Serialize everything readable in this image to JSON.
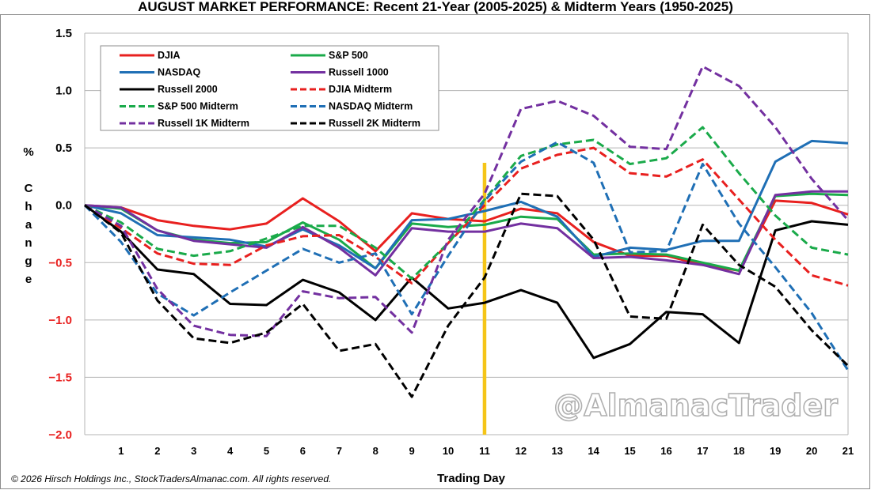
{
  "chart_data": {
    "type": "line",
    "title": "AUGUST MARKET PERFORMANCE: Recent 21-Year (2005-2025) & Midterm Years (1950-2025)",
    "xlabel": "Trading Day",
    "ylabel": "% Change",
    "ylabel_chars": [
      "%",
      "",
      "C",
      "h",
      "a",
      "n",
      "g",
      "e"
    ],
    "ylim": [
      -2.0,
      1.5
    ],
    "yticks": [
      1.5,
      1.0,
      0.5,
      0.0,
      -0.5,
      -1.0,
      -1.5,
      -2.0
    ],
    "ytick_labels": [
      "1.5",
      "1.0",
      "0.5",
      "0.0",
      "−0.5",
      "−1.0",
      "−1.5",
      "−2.0"
    ],
    "xlim": [
      0,
      21
    ],
    "xticks": [
      1,
      2,
      3,
      4,
      5,
      6,
      7,
      8,
      9,
      10,
      11,
      12,
      13,
      14,
      15,
      16,
      17,
      18,
      19,
      20,
      21
    ],
    "xtick_labels": [
      "1",
      "2",
      "3",
      "4",
      "5",
      "6",
      "7",
      "8",
      "9",
      "10",
      "11",
      "12",
      "13",
      "14",
      "15",
      "16",
      "17",
      "18",
      "19",
      "20",
      "21"
    ],
    "grid": "horizontal",
    "legend_position": "top-left",
    "x": [
      0,
      1,
      2,
      3,
      4,
      5,
      6,
      7,
      8,
      9,
      10,
      11,
      12,
      13,
      14,
      15,
      16,
      17,
      18,
      19,
      20,
      21
    ],
    "series": [
      {
        "name": "DJIA",
        "color": "#e8201f",
        "dash": "solid",
        "values": [
          0,
          -0.02,
          -0.13,
          -0.18,
          -0.21,
          -0.16,
          0.06,
          -0.14,
          -0.4,
          -0.07,
          -0.12,
          -0.14,
          -0.03,
          -0.07,
          -0.32,
          -0.44,
          -0.44,
          -0.52,
          -0.57,
          0.04,
          0.02,
          -0.08
        ]
      },
      {
        "name": "S&P 500",
        "color": "#1aaa4a",
        "dash": "solid",
        "values": [
          0,
          -0.03,
          -0.22,
          -0.3,
          -0.33,
          -0.32,
          -0.15,
          -0.3,
          -0.55,
          -0.16,
          -0.19,
          -0.17,
          -0.1,
          -0.12,
          -0.43,
          -0.42,
          -0.43,
          -0.5,
          -0.57,
          0.08,
          0.1,
          0.09
        ]
      },
      {
        "name": "NASDAQ",
        "color": "#1f6fb5",
        "dash": "solid",
        "values": [
          0,
          -0.07,
          -0.26,
          -0.28,
          -0.3,
          -0.36,
          -0.21,
          -0.35,
          -0.55,
          -0.13,
          -0.12,
          -0.05,
          0.03,
          -0.1,
          -0.45,
          -0.37,
          -0.39,
          -0.31,
          -0.31,
          0.38,
          0.56,
          0.54
        ]
      },
      {
        "name": "Russell 1000",
        "color": "#7330a0",
        "dash": "solid",
        "values": [
          0,
          -0.02,
          -0.22,
          -0.31,
          -0.34,
          -0.37,
          -0.19,
          -0.37,
          -0.61,
          -0.2,
          -0.23,
          -0.23,
          -0.16,
          -0.2,
          -0.46,
          -0.45,
          -0.48,
          -0.52,
          -0.6,
          0.09,
          0.12,
          0.12
        ]
      },
      {
        "name": "Russell 2000",
        "color": "#000000",
        "dash": "solid",
        "values": [
          0,
          -0.23,
          -0.56,
          -0.6,
          -0.86,
          -0.87,
          -0.65,
          -0.76,
          -1.0,
          -0.63,
          -0.9,
          -0.85,
          -0.74,
          -0.85,
          -1.33,
          -1.21,
          -0.93,
          -0.95,
          -1.2,
          -0.22,
          -0.14,
          -0.17
        ]
      },
      {
        "name": "DJIA Midterm",
        "color": "#e8201f",
        "dash": "dashed",
        "values": [
          0,
          -0.2,
          -0.42,
          -0.51,
          -0.52,
          -0.35,
          -0.27,
          -0.26,
          -0.45,
          -0.68,
          -0.33,
          0.0,
          0.32,
          0.44,
          0.5,
          0.28,
          0.25,
          0.4,
          0.05,
          -0.3,
          -0.61,
          -0.7
        ]
      },
      {
        "name": "S&P 500 Midterm",
        "color": "#1aaa4a",
        "dash": "dashed",
        "values": [
          0,
          -0.15,
          -0.38,
          -0.44,
          -0.4,
          -0.29,
          -0.18,
          -0.18,
          -0.37,
          -0.64,
          -0.33,
          0.05,
          0.43,
          0.53,
          0.57,
          0.36,
          0.41,
          0.68,
          0.28,
          -0.09,
          -0.37,
          -0.43
        ]
      },
      {
        "name": "NASDAQ Midterm",
        "color": "#1f6fb5",
        "dash": "dashed",
        "values": [
          0,
          -0.32,
          -0.77,
          -0.96,
          -0.76,
          -0.57,
          -0.38,
          -0.5,
          -0.42,
          -0.95,
          -0.44,
          0.04,
          0.38,
          0.55,
          0.37,
          -0.41,
          -0.4,
          0.36,
          -0.16,
          -0.54,
          -0.94,
          -1.44
        ]
      },
      {
        "name": "Russell 1K Midterm",
        "color": "#7330a0",
        "dash": "dashed",
        "values": [
          0,
          -0.18,
          -0.73,
          -1.05,
          -1.13,
          -1.14,
          -0.75,
          -0.81,
          -0.8,
          -1.11,
          -0.3,
          0.1,
          0.84,
          0.91,
          0.78,
          0.51,
          0.49,
          1.21,
          1.04,
          0.68,
          0.23,
          -0.13
        ]
      },
      {
        "name": "Russell 2K Midterm",
        "color": "#000000",
        "dash": "dashed",
        "values": [
          0,
          -0.24,
          -0.83,
          -1.16,
          -1.2,
          -1.11,
          -0.86,
          -1.27,
          -1.21,
          -1.67,
          -1.05,
          -0.63,
          0.1,
          0.08,
          -0.3,
          -0.97,
          -0.99,
          -0.17,
          -0.52,
          -0.71,
          -1.09,
          -1.4
        ]
      }
    ],
    "legend_order": [
      0,
      1,
      2,
      3,
      4,
      5,
      6,
      7,
      8,
      9
    ],
    "marker_line": {
      "x": 11,
      "color": "#f5c518",
      "from": -2.0,
      "to": 0.37
    },
    "copyright": "© 2026 Hirsch Holdings Inc., StockTradersAlmanac.com. All rights reserved.",
    "watermark": "@AlmanacTrader",
    "colors": {
      "positive_tick": "#000000",
      "negative_tick": "#e8201f",
      "grid": "#b5b5b5",
      "frame": "#8c8c8c"
    }
  }
}
